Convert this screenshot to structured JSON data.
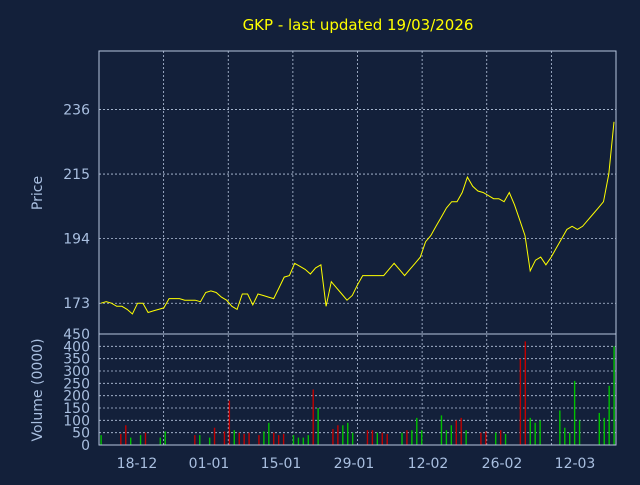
{
  "chart_data": {
    "type": "line",
    "title": "GKP - last updated 19/03/2026",
    "colors": {
      "background": "#13203a",
      "price_line": "#ffff00",
      "volume_up": "#00c000",
      "volume_down": "#c00000",
      "grid": "#b7c6de",
      "text": "#a9bfe0",
      "title": "#ffff00"
    },
    "grid": true,
    "x_tick_labels": [
      "18-12",
      "01-01",
      "15-01",
      "29-01",
      "12-02",
      "26-02",
      "12-03"
    ],
    "price_panel": {
      "ylabel": "Price",
      "yticks": [
        173,
        194,
        215,
        236
      ],
      "ylim": [
        163,
        255
      ],
      "series": [
        {
          "values": [
            173,
            173.5,
            173,
            172,
            172,
            171,
            169.5,
            173,
            173,
            170,
            170.5,
            171,
            171.5,
            174.5,
            174.5,
            174.5,
            174,
            174,
            174,
            173.5,
            176.5,
            177,
            176.5,
            175,
            174,
            172,
            171,
            176,
            176,
            172.5,
            176,
            175.5,
            175,
            174.5,
            178,
            181.5,
            182,
            186,
            185,
            184,
            182.5,
            184.5,
            185.5,
            172,
            180,
            178,
            176,
            174,
            175.5,
            179,
            182,
            182,
            182,
            182,
            182,
            184,
            186,
            184,
            182,
            184,
            186,
            188,
            193,
            195,
            198,
            201,
            204,
            206,
            206,
            209,
            214,
            211,
            209.5,
            209,
            208,
            207,
            207,
            206,
            209,
            205,
            200,
            195,
            183.5,
            187,
            188,
            185.5,
            188,
            191,
            194,
            197,
            198,
            197,
            198,
            200,
            202,
            204,
            206,
            215,
            232
          ]
        }
      ]
    },
    "volume_panel": {
      "ylabel": "Volume (0000)",
      "yticks": [
        0,
        50,
        100,
        150,
        200,
        250,
        300,
        350,
        400,
        450
      ],
      "ylim": [
        0,
        450
      ],
      "bars": [
        {
          "v": 40,
          "up": true
        },
        {
          "v": 0,
          "up": true
        },
        {
          "v": 0,
          "up": true
        },
        {
          "v": 0,
          "up": true
        },
        {
          "v": 45,
          "up": false
        },
        {
          "v": 80,
          "up": false
        },
        {
          "v": 30,
          "up": true
        },
        {
          "v": 0,
          "up": true
        },
        {
          "v": 40,
          "up": true
        },
        {
          "v": 50,
          "up": false
        },
        {
          "v": 0,
          "up": true
        },
        {
          "v": 0,
          "up": true
        },
        {
          "v": 30,
          "up": true
        },
        {
          "v": 55,
          "up": true
        },
        {
          "v": 0,
          "up": true
        },
        {
          "v": 0,
          "up": true
        },
        {
          "v": 0,
          "up": true
        },
        {
          "v": 0,
          "up": true
        },
        {
          "v": 0,
          "up": true
        },
        {
          "v": 40,
          "up": false
        },
        {
          "v": 40,
          "up": true
        },
        {
          "v": 0,
          "up": true
        },
        {
          "v": 30,
          "up": true
        },
        {
          "v": 70,
          "up": false
        },
        {
          "v": 0,
          "up": true
        },
        {
          "v": 55,
          "up": false
        },
        {
          "v": 180,
          "up": false
        },
        {
          "v": 60,
          "up": true
        },
        {
          "v": 50,
          "up": false
        },
        {
          "v": 45,
          "up": false
        },
        {
          "v": 50,
          "up": false
        },
        {
          "v": 0,
          "up": true
        },
        {
          "v": 40,
          "up": false
        },
        {
          "v": 55,
          "up": true
        },
        {
          "v": 90,
          "up": true
        },
        {
          "v": 50,
          "up": false
        },
        {
          "v": 40,
          "up": false
        },
        {
          "v": 45,
          "up": false
        },
        {
          "v": 0,
          "up": true
        },
        {
          "v": 40,
          "up": true
        },
        {
          "v": 30,
          "up": true
        },
        {
          "v": 30,
          "up": true
        },
        {
          "v": 40,
          "up": true
        },
        {
          "v": 225,
          "up": false
        },
        {
          "v": 150,
          "up": true
        },
        {
          "v": 0,
          "up": true
        },
        {
          "v": 0,
          "up": true
        },
        {
          "v": 65,
          "up": false
        },
        {
          "v": 80,
          "up": false
        },
        {
          "v": 80,
          "up": true
        },
        {
          "v": 90,
          "up": true
        },
        {
          "v": 50,
          "up": true
        },
        {
          "v": 0,
          "up": true
        },
        {
          "v": 0,
          "up": true
        },
        {
          "v": 60,
          "up": false
        },
        {
          "v": 60,
          "up": false
        },
        {
          "v": 50,
          "up": true
        },
        {
          "v": 50,
          "up": false
        },
        {
          "v": 45,
          "up": false
        },
        {
          "v": 0,
          "up": true
        },
        {
          "v": 0,
          "up": true
        },
        {
          "v": 50,
          "up": true
        },
        {
          "v": 60,
          "up": false
        },
        {
          "v": 60,
          "up": true
        },
        {
          "v": 110,
          "up": true
        },
        {
          "v": 60,
          "up": true
        },
        {
          "v": 0,
          "up": true
        },
        {
          "v": 0,
          "up": true
        },
        {
          "v": 0,
          "up": true
        },
        {
          "v": 120,
          "up": true
        },
        {
          "v": 60,
          "up": true
        },
        {
          "v": 80,
          "up": true
        },
        {
          "v": 100,
          "up": false
        },
        {
          "v": 110,
          "up": false
        },
        {
          "v": 60,
          "up": true
        },
        {
          "v": 0,
          "up": true
        },
        {
          "v": 0,
          "up": true
        },
        {
          "v": 50,
          "up": false
        },
        {
          "v": 55,
          "up": false
        },
        {
          "v": 0,
          "up": true
        },
        {
          "v": 50,
          "up": true
        },
        {
          "v": 60,
          "up": false
        },
        {
          "v": 45,
          "up": true
        },
        {
          "v": 0,
          "up": true
        },
        {
          "v": 0,
          "up": true
        },
        {
          "v": 350,
          "up": false
        },
        {
          "v": 420,
          "up": false
        },
        {
          "v": 110,
          "up": true
        },
        {
          "v": 90,
          "up": true
        },
        {
          "v": 100,
          "up": true
        },
        {
          "v": 0,
          "up": true
        },
        {
          "v": 0,
          "up": true
        },
        {
          "v": 0,
          "up": true
        },
        {
          "v": 140,
          "up": true
        },
        {
          "v": 70,
          "up": true
        },
        {
          "v": 50,
          "up": true
        },
        {
          "v": 260,
          "up": true
        },
        {
          "v": 100,
          "up": true
        },
        {
          "v": 0,
          "up": true
        },
        {
          "v": 0,
          "up": true
        },
        {
          "v": 0,
          "up": true
        },
        {
          "v": 130,
          "up": true
        },
        {
          "v": 110,
          "up": true
        },
        {
          "v": 240,
          "up": true
        },
        {
          "v": 400,
          "up": true
        }
      ]
    }
  }
}
